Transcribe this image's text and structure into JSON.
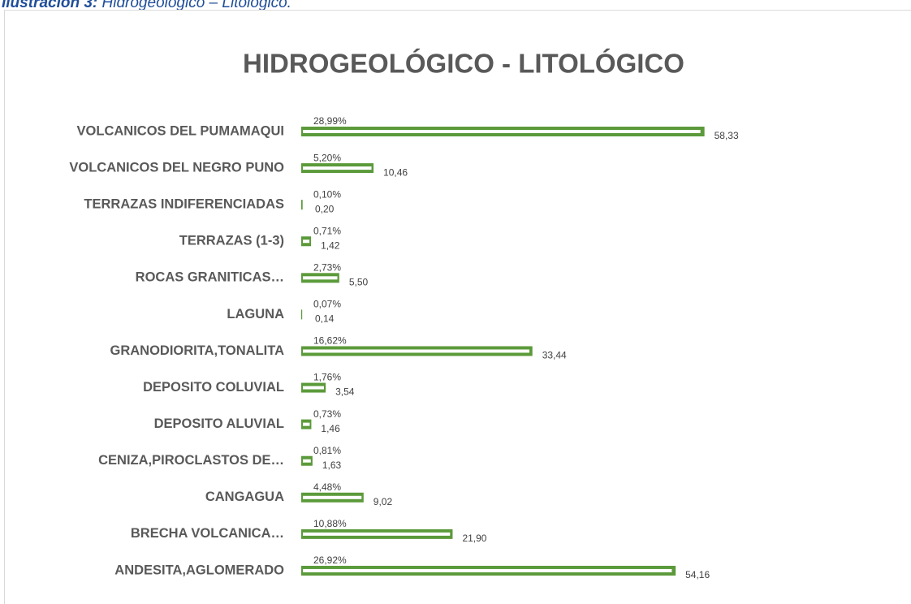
{
  "caption": {
    "label": "Ilustración 3:",
    "text": "Hidrogeológico – Litológico."
  },
  "chart_data": {
    "type": "bar",
    "orientation": "horizontal",
    "title": "HIDROGEOLÓGICO - LITOLÓGICO",
    "categories": [
      "VOLCANICOS DEL PUMAMAQUI",
      "VOLCANICOS DEL NEGRO PUNO",
      "TERRAZAS INDIFERENCIADAS",
      "TERRAZAS (1-3)",
      "ROCAS GRANITICAS…",
      "LAGUNA",
      "GRANODIORITA,TONALITA",
      "DEPOSITO COLUVIAL",
      "DEPOSITO ALUVIAL",
      "CENIZA,PIROCLASTOS DE…",
      "CANGAGUA",
      "BRECHA VOLCANICA…",
      "ANDESITA,AGLOMERADO"
    ],
    "series": [
      {
        "color": "#5b9a3a",
        "values": [
          58.33,
          10.46,
          0.2,
          1.42,
          5.5,
          0.14,
          33.44,
          3.54,
          1.46,
          1.63,
          9.02,
          21.9,
          54.16
        ],
        "value_labels": [
          "58,33",
          "10,46",
          "0,20",
          "1,42",
          "5,50",
          "0,14",
          "33,44",
          "3,54",
          "1,46",
          "1,63",
          "9,02",
          "21,90",
          "54,16"
        ]
      },
      {
        "color": "#ffffff",
        "axis": "x2",
        "values": [
          28.99,
          5.2,
          0.1,
          0.71,
          2.73,
          0.07,
          16.62,
          1.76,
          0.73,
          0.81,
          4.48,
          10.88,
          26.92
        ],
        "value_labels": [
          "28,99%",
          "5,20%",
          "0,10%",
          "0,71%",
          "2,73%",
          "0,07%",
          "16,62%",
          "1,76%",
          "0,73%",
          "0,81%",
          "4,48%",
          "10,88%",
          "26,92%"
        ]
      }
    ],
    "xlim": [
      0,
      70
    ],
    "x2lim": [
      0,
      35
    ]
  }
}
